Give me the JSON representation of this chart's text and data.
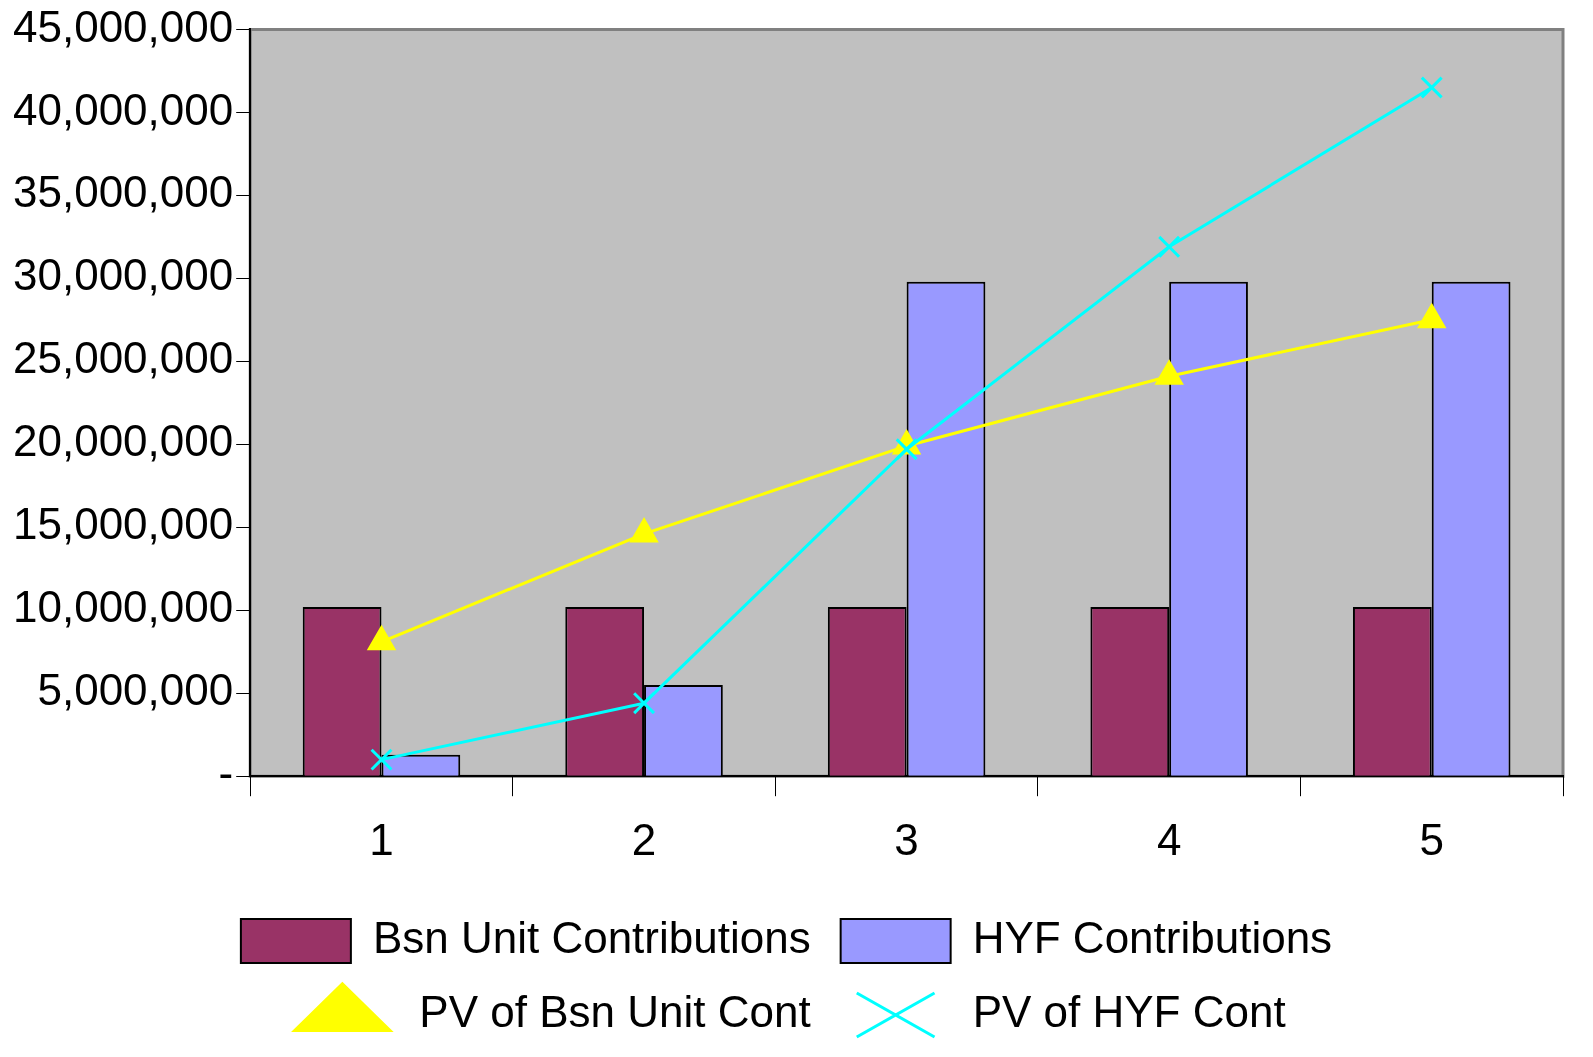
{
  "chart_data": {
    "type": "bar",
    "categories": [
      "1",
      "2",
      "3",
      "4",
      "5"
    ],
    "series": [
      {
        "name": "Bsn Unit Contributions",
        "color": "#993366",
        "values": [
          10200000,
          10200000,
          10200000,
          10200000,
          10200000
        ]
      },
      {
        "name": "HYF Contributions",
        "color": "#9999ff",
        "values": [
          1300000,
          5500000,
          29800000,
          29800000,
          29800000
        ]
      },
      {
        "name": "PV of Bsn Unit Cont",
        "type": "line",
        "color": "#ffff00",
        "marker": "triangle",
        "values": [
          8100000,
          14600000,
          19900000,
          24100000,
          27500000
        ]
      },
      {
        "name": "PV of HYF Cont",
        "type": "line",
        "color": "#00ffff",
        "marker": "cross",
        "values": [
          1000000,
          4400000,
          19700000,
          31900000,
          41500000
        ]
      }
    ],
    "ylim": [
      0,
      45000000
    ],
    "yticks": [
      {
        "value": 0,
        "label": "-"
      },
      {
        "value": 5000000,
        "label": "5,000,000"
      },
      {
        "value": 10000000,
        "label": "10,000,000"
      },
      {
        "value": 15000000,
        "label": "15,000,000"
      },
      {
        "value": 20000000,
        "label": "20,000,000"
      },
      {
        "value": 25000000,
        "label": "25,000,000"
      },
      {
        "value": 30000000,
        "label": "30,000,000"
      },
      {
        "value": 35000000,
        "label": "35,000,000"
      },
      {
        "value": 40000000,
        "label": "40,000,000"
      },
      {
        "value": 45000000,
        "label": "45,000,000"
      }
    ],
    "grid": false,
    "legend": "bottom"
  }
}
